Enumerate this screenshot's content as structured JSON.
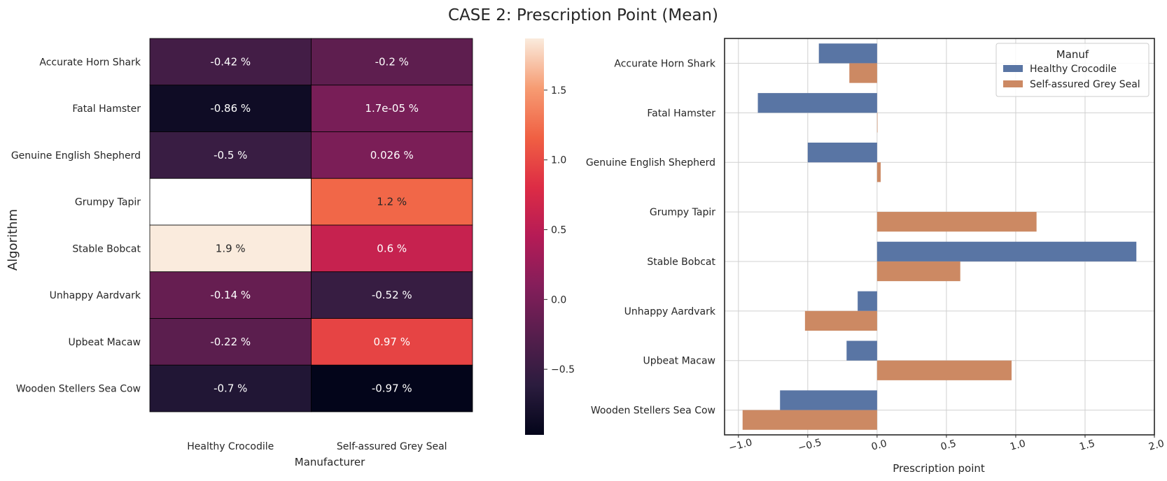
{
  "title": "CASE 2: Prescription Point (Mean)",
  "chart_data": [
    {
      "type": "heatmap",
      "xlabel": "Manufacturer",
      "ylabel": "Algorithm",
      "columns": [
        "Healthy Crocodile",
        "Self-assured Grey Seal"
      ],
      "rows": [
        "Accurate Horn Shark",
        "Fatal Hamster",
        "Genuine English Shepherd",
        "Grumpy Tapir",
        "Stable Bobcat",
        "Unhappy Aardvark",
        "Upbeat Macaw",
        "Wooden Stellers Sea Cow"
      ],
      "values": [
        [
          -0.42,
          -0.2
        ],
        [
          -0.86,
          1.7e-05
        ],
        [
          -0.5,
          0.026
        ],
        [
          null,
          1.2
        ],
        [
          1.9,
          0.6
        ],
        [
          -0.14,
          -0.52
        ],
        [
          -0.22,
          0.97
        ],
        [
          -0.7,
          -0.97
        ]
      ],
      "annotations": [
        [
          "-0.42 %",
          "-0.2 %"
        ],
        [
          "-0.86 %",
          "1.7e-05 %"
        ],
        [
          "-0.5 %",
          "0.026 %"
        ],
        [
          "",
          "1.2 %"
        ],
        [
          "1.9 %",
          "0.6 %"
        ],
        [
          "-0.14 %",
          "-0.52 %"
        ],
        [
          "-0.22 %",
          "0.97 %"
        ],
        [
          "-0.7 %",
          "-0.97 %"
        ]
      ],
      "colorbar": {
        "vmin": -0.97,
        "vmax": 1.87,
        "ticks": [
          -0.5,
          0.0,
          0.5,
          1.0,
          1.5
        ],
        "tick_labels": [
          "−0.5",
          "0.0",
          "0.5",
          "1.0",
          "1.5"
        ]
      }
    },
    {
      "type": "bar",
      "orientation": "horizontal",
      "xlabel": "Prescription point",
      "ylabel": "",
      "categories": [
        "Accurate Horn Shark",
        "Fatal Hamster",
        "Genuine English Shepherd",
        "Grumpy Tapir",
        "Stable Bobcat",
        "Unhappy Aardvark",
        "Upbeat Macaw",
        "Wooden Stellers Sea Cow"
      ],
      "xlim": [
        -1.1,
        2.0
      ],
      "xticks": [
        -1.0,
        -0.5,
        0.0,
        0.5,
        1.0,
        1.5,
        2.0
      ],
      "xtick_labels": [
        "−1.0",
        "−0.5",
        "0.0",
        "0.5",
        "1.0",
        "1.5",
        "2.0"
      ],
      "grid": true,
      "legend": {
        "title": "Manuf",
        "placement": "top-right"
      },
      "series": [
        {
          "name": "Healthy Crocodile",
          "color": "#5975a4",
          "values": [
            -0.42,
            -0.86,
            -0.5,
            null,
            1.87,
            -0.14,
            -0.22,
            -0.7
          ]
        },
        {
          "name": "Self-assured Grey Seal",
          "color": "#cc8963",
          "values": [
            -0.2,
            1.7e-05,
            0.026,
            1.15,
            0.6,
            -0.52,
            0.97,
            -0.97
          ]
        }
      ]
    }
  ]
}
